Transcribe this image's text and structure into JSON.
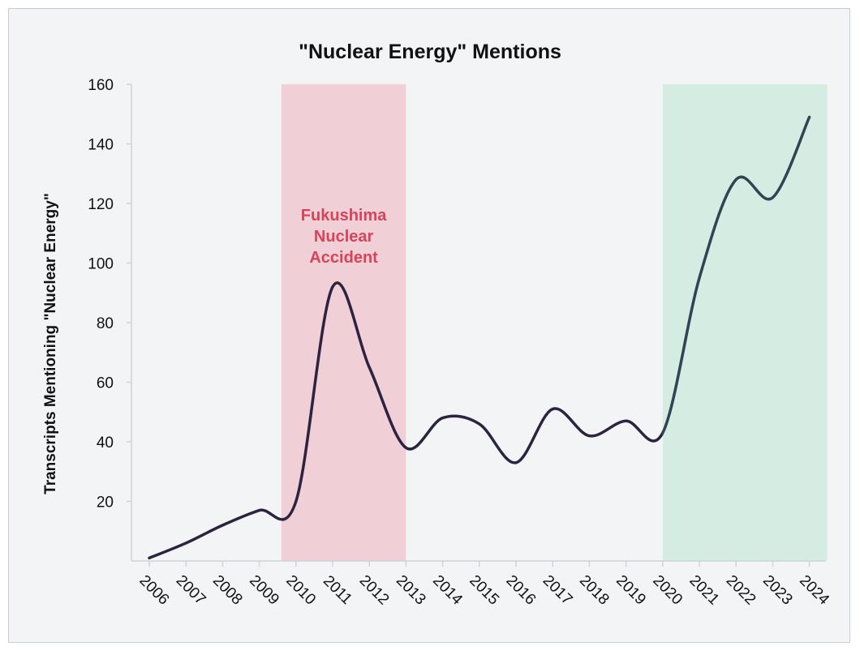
{
  "colors": {
    "background": "#f3f4f6",
    "axis": "#cfd2d8",
    "pink_band": "#f0d0d6",
    "green_band": "#d5ece3",
    "line_dark": "#2b2340",
    "line_teal": "#2f4553",
    "annotation": "#d6435a"
  },
  "chart_data": {
    "type": "line",
    "title": "\"Nuclear Energy\" Mentions",
    "xlabel": "",
    "ylabel": "Transcripts Mentioning \"Nuclear Energy\"",
    "ylim": [
      0,
      160
    ],
    "yticks": [
      20,
      40,
      60,
      80,
      100,
      120,
      140,
      160
    ],
    "grid": false,
    "legend": "none",
    "x": [
      "2006",
      "2007",
      "2008",
      "2009",
      "2010",
      "2011",
      "2012",
      "2013",
      "2014",
      "2015",
      "2016",
      "2017",
      "2018",
      "2019",
      "2020",
      "2021",
      "2022",
      "2023",
      "2024"
    ],
    "series": [
      {
        "values": [
          1,
          6,
          12,
          17,
          20,
          92,
          65,
          38,
          48,
          46,
          33,
          51,
          42,
          47,
          43,
          95,
          128,
          122,
          149
        ]
      }
    ],
    "shaded_regions": [
      {
        "from": "2010",
        "to": "2013",
        "color": "#f0d0d6",
        "label": "Fukushima\nNuclear\nAccident"
      },
      {
        "from": "2020",
        "to": "2024",
        "color": "#d5ece3",
        "label": ""
      }
    ]
  }
}
